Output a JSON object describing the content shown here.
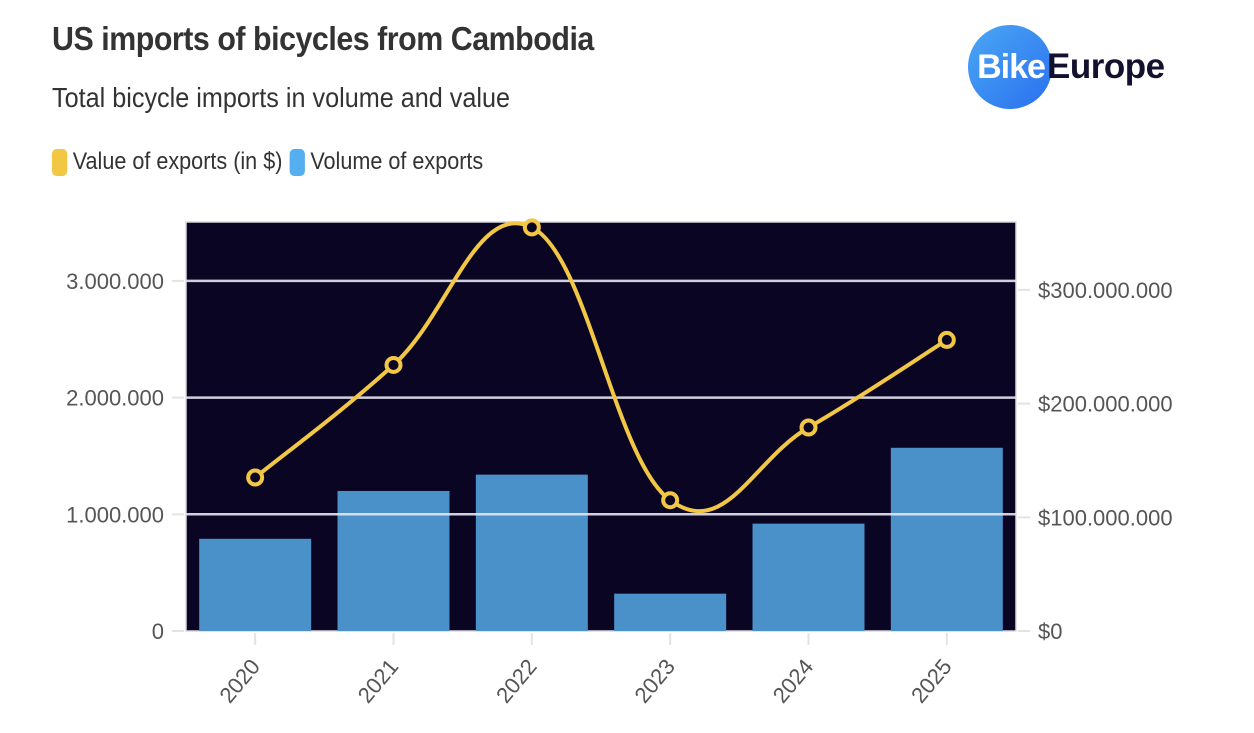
{
  "header": {
    "title": "US imports of bicycles from Cambodia",
    "subtitle": "Total bicycle imports in volume and value"
  },
  "logo": {
    "part1": "Bike",
    "part2": "Europe"
  },
  "legend": [
    {
      "label": "Value of exports (in $)",
      "color": "#f2c744"
    },
    {
      "label": "Volume of exports",
      "color": "#55aef0"
    }
  ],
  "colors": {
    "plot_background": "#0b0524",
    "bar": "#4a90c9",
    "line": "#f2c744",
    "grid": "#e6e6ee"
  },
  "chart_data": {
    "type": "bar+line",
    "title": "US imports of bicycles from Cambodia",
    "subtitle": "Total bicycle imports in volume and value",
    "categories": [
      "2020",
      "2021",
      "2022",
      "2023",
      "2024",
      "2025"
    ],
    "series": [
      {
        "name": "Volume of exports",
        "type": "bar",
        "axis": "left",
        "values": [
          790000,
          1200000,
          1340000,
          320000,
          920000,
          1570000
        ]
      },
      {
        "name": "Value of exports (in $)",
        "type": "line",
        "axis": "right",
        "smooth": true,
        "values": [
          135000000,
          234000000,
          355000000,
          115000000,
          179000000,
          256000000
        ]
      }
    ],
    "y_left": {
      "ticks": [
        0,
        1000000,
        2000000,
        3000000
      ],
      "tick_labels": [
        "0",
        "1.000.000",
        "2.000.000",
        "3.000.000"
      ],
      "range": [
        0,
        3500000
      ]
    },
    "y_right": {
      "ticks": [
        0,
        100000000,
        200000000,
        300000000
      ],
      "tick_labels": [
        "$0",
        "$100.000.000",
        "$200.000.000",
        "$300.000.000"
      ],
      "range": [
        0,
        360000000
      ]
    },
    "grid": true,
    "legend_position": "top-left"
  }
}
